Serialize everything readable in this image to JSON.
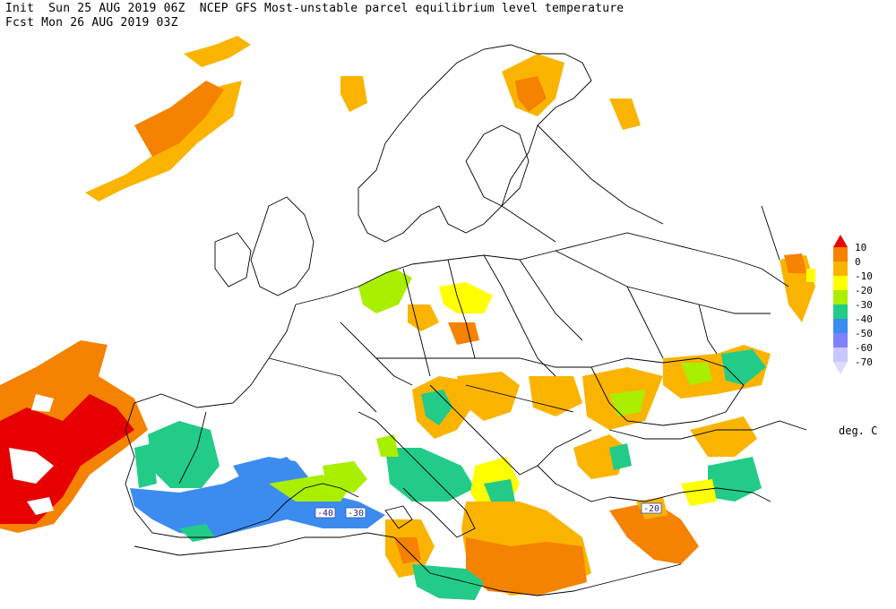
{
  "header": {
    "line1": "Init  Sun 25 AUG 2019 06Z  NCEP GFS Most-unstable parcel equilibrium level temperature",
    "line2": "Fcst Mon 26 AUG 2019 03Z"
  },
  "legend": {
    "unit": "deg. C",
    "entries": [
      {
        "label": "10",
        "color": "#e60000"
      },
      {
        "label": "0",
        "color": "#f58200"
      },
      {
        "label": "-10",
        "color": "#fab400"
      },
      {
        "label": "-20",
        "color": "#ffff00"
      },
      {
        "label": "-30",
        "color": "#aaee00"
      },
      {
        "label": "-40",
        "color": "#22cc88"
      },
      {
        "label": "-50",
        "color": "#3c8cf0"
      },
      {
        "label": "-60",
        "color": "#8080ff"
      },
      {
        "label": "-70",
        "color": "#c8c8ff"
      }
    ]
  },
  "contour_labels": [
    {
      "text": "-40"
    },
    {
      "text": "-30"
    },
    {
      "text": "-20"
    }
  ]
}
